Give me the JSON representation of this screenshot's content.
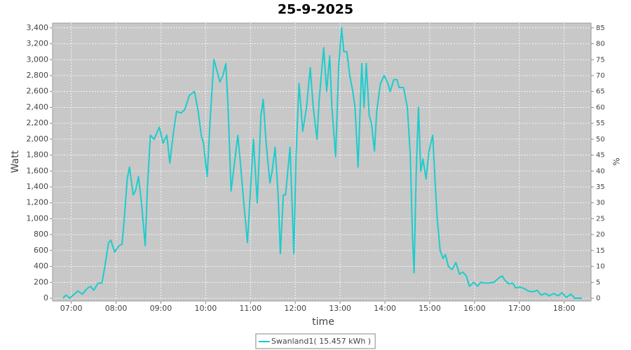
{
  "chart_data": {
    "type": "line",
    "title": "25-9-2025",
    "x_label": "time",
    "y_label": "Watt",
    "y2_label": "%",
    "x": [
      "06:49",
      "06:53",
      "06:58",
      "07:05",
      "07:09",
      "07:15",
      "07:21",
      "07:26",
      "07:30",
      "07:36",
      "07:41",
      "07:45",
      "07:50",
      "07:53",
      "07:58",
      "08:04",
      "08:08",
      "08:11",
      "08:15",
      "08:18",
      "08:23",
      "08:26",
      "08:30",
      "08:34",
      "08:39",
      "08:42",
      "08:46",
      "08:51",
      "08:58",
      "09:03",
      "09:08",
      "09:12",
      "09:17",
      "09:21",
      "09:27",
      "09:32",
      "09:38",
      "09:45",
      "09:50",
      "09:54",
      "09:57",
      "10:02",
      "10:06",
      "10:11",
      "10:14",
      "10:19",
      "10:23",
      "10:27",
      "10:30",
      "10:34",
      "10:38",
      "10:43",
      "10:46",
      "10:51",
      "10:56",
      "10:59",
      "11:04",
      "11:09",
      "11:14",
      "11:17",
      "11:21",
      "11:26",
      "11:29",
      "11:33",
      "11:37",
      "11:40",
      "11:44",
      "11:47",
      "11:53",
      "11:58",
      "12:01",
      "12:05",
      "12:10",
      "12:15",
      "12:20",
      "12:24",
      "12:29",
      "12:32",
      "12:38",
      "12:42",
      "12:46",
      "12:49",
      "12:54",
      "12:58",
      "13:02",
      "13:05",
      "13:09",
      "13:13",
      "13:17",
      "13:20",
      "13:24",
      "13:29",
      "13:32",
      "13:35",
      "13:39",
      "13:42",
      "13:46",
      "13:49",
      "13:54",
      "13:59",
      "14:04",
      "14:07",
      "14:12",
      "14:16",
      "14:19",
      "14:25",
      "14:30",
      "14:34",
      "14:37",
      "14:39",
      "14:42",
      "14:45",
      "14:48",
      "14:51",
      "14:55",
      "14:59",
      "15:04",
      "15:07",
      "15:10",
      "15:14",
      "15:18",
      "15:21",
      "15:25",
      "15:30",
      "15:35",
      "15:40",
      "15:44",
      "15:49",
      "15:53",
      "15:59",
      "16:04",
      "16:08",
      "16:13",
      "16:19",
      "16:26",
      "16:32",
      "16:37",
      "16:41",
      "16:46",
      "16:51",
      "16:55",
      "17:01",
      "17:07",
      "17:12",
      "17:18",
      "17:24",
      "17:29",
      "17:35",
      "17:40",
      "17:46",
      "17:52",
      "17:57",
      "18:03",
      "18:09",
      "18:14",
      "18:24"
    ],
    "series": [
      {
        "name": "Swanland1( 15.457 kWh )",
        "color": "#1ecccc",
        "values": [
          0,
          40,
          0,
          60,
          90,
          50,
          120,
          150,
          100,
          190,
          190,
          400,
          700,
          730,
          580,
          660,
          680,
          1000,
          1500,
          1650,
          1300,
          1350,
          1530,
          1200,
          660,
          1400,
          2050,
          2000,
          2150,
          1950,
          2050,
          1700,
          2100,
          2350,
          2330,
          2370,
          2550,
          2600,
          2350,
          2050,
          1950,
          1530,
          2250,
          3000,
          2900,
          2720,
          2800,
          2950,
          2400,
          1350,
          1650,
          2050,
          1750,
          1200,
          700,
          1200,
          2000,
          1200,
          2300,
          2500,
          1950,
          1450,
          1600,
          1900,
          1300,
          560,
          1300,
          1300,
          1900,
          560,
          1800,
          2700,
          2100,
          2400,
          2900,
          2400,
          2000,
          2500,
          3150,
          2600,
          3050,
          2400,
          1780,
          2900,
          3400,
          3100,
          3100,
          2800,
          2600,
          2400,
          1650,
          2950,
          2400,
          2950,
          2300,
          2200,
          1850,
          2350,
          2700,
          2800,
          2700,
          2600,
          2750,
          2750,
          2650,
          2650,
          2400,
          1800,
          750,
          320,
          1600,
          2400,
          1600,
          1750,
          1500,
          1850,
          2050,
          1500,
          1000,
          600,
          500,
          550,
          400,
          360,
          450,
          300,
          330,
          280,
          150,
          200,
          150,
          200,
          190,
          190,
          200,
          250,
          280,
          220,
          180,
          190,
          130,
          140,
          120,
          90,
          80,
          100,
          40,
          60,
          30,
          60,
          30,
          70,
          10,
          50,
          0,
          0
        ]
      }
    ],
    "xlim": [
      "06:35",
      "18:36"
    ],
    "xticks": [
      "07:00",
      "08:00",
      "09:00",
      "10:00",
      "11:00",
      "12:00",
      "13:00",
      "14:00",
      "15:00",
      "16:00",
      "17:00",
      "18:00"
    ],
    "ylim": [
      -35,
      3460
    ],
    "yticks": [
      0,
      200,
      400,
      600,
      800,
      {
        "value": 1000,
        "label": "1,000"
      },
      {
        "value": 1200,
        "label": "1,200"
      },
      {
        "value": 1400,
        "label": "1,400"
      },
      {
        "value": 1600,
        "label": "1,600"
      },
      {
        "value": 1800,
        "label": "1,800"
      },
      {
        "value": 2000,
        "label": "2,000"
      },
      {
        "value": 2200,
        "label": "2,200"
      },
      {
        "value": 2400,
        "label": "2,400"
      },
      {
        "value": 2600,
        "label": "2,600"
      },
      {
        "value": 2800,
        "label": "2,800"
      },
      {
        "value": 3000,
        "label": "3,000"
      },
      {
        "value": 3200,
        "label": "3,200"
      },
      {
        "value": 3400,
        "label": "3,400"
      }
    ],
    "y2lim": [
      -0.875,
      86.5
    ],
    "y2ticks": [
      0,
      5,
      10,
      15,
      20,
      25,
      30,
      35,
      40,
      45,
      50,
      55,
      60,
      65,
      70,
      75,
      80,
      85
    ],
    "grid": true,
    "background": "#c8c8c8",
    "legend": "bottom"
  }
}
